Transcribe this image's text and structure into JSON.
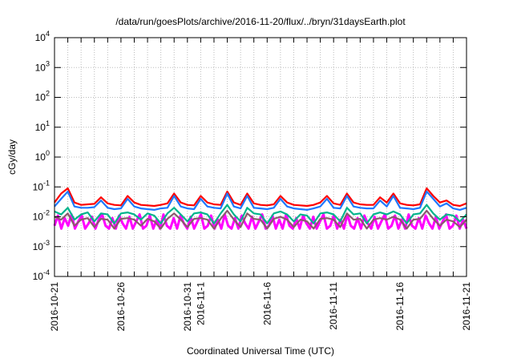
{
  "chart_data": {
    "type": "line",
    "title": "/data/run/goesPlots/archive/2016-11-20/flux/../bryn/31daysEarth.plot",
    "xlabel": "Coordinated Universal Time (UTC)",
    "ylabel": "cGy/day",
    "yscale": "log",
    "ylim": [
      0.0001,
      10000
    ],
    "xlim_days": [
      0,
      31
    ],
    "grid": true,
    "y_ticks": [
      {
        "base": "10",
        "exp": "4",
        "value": 10000
      },
      {
        "base": "10",
        "exp": "3",
        "value": 1000
      },
      {
        "base": "10",
        "exp": "2",
        "value": 100
      },
      {
        "base": "10",
        "exp": "1",
        "value": 10
      },
      {
        "base": "10",
        "exp": "0",
        "value": 1
      },
      {
        "base": "10",
        "exp": "-1",
        "value": 0.1
      },
      {
        "base": "10",
        "exp": "-2",
        "value": 0.01
      },
      {
        "base": "10",
        "exp": "-3",
        "value": 0.001
      },
      {
        "base": "10",
        "exp": "-4",
        "value": 0.0001
      }
    ],
    "x_ticks": [
      {
        "label": "2016-10-21",
        "day": 0
      },
      {
        "label": "2016-10-26",
        "day": 5
      },
      {
        "label": "2016-10-31",
        "day": 10
      },
      {
        "label": "2016-11-1",
        "day": 11
      },
      {
        "label": "2016-11-6",
        "day": 16
      },
      {
        "label": "2016-11-11",
        "day": 21
      },
      {
        "label": "2016-11-16",
        "day": 26
      },
      {
        "label": "2016-11-21",
        "day": 31
      }
    ],
    "series": [
      {
        "name": "magenta",
        "color": "#ff00ff",
        "values": [
          0.005,
          0.011,
          0.004,
          0.009,
          0.005,
          0.012,
          0.004,
          0.007,
          0.011,
          0.004,
          0.006,
          0.01,
          0.004,
          0.008,
          0.012,
          0.005,
          0.004,
          0.009,
          0.004,
          0.011,
          0.006,
          0.004,
          0.01,
          0.004,
          0.007,
          0.012,
          0.004,
          0.005,
          0.011,
          0.004,
          0.008,
          0.004,
          0.012,
          0.005,
          0.004,
          0.009,
          0.004,
          0.011,
          0.006,
          0.004,
          0.01,
          0.004,
          0.007,
          0.012,
          0.004,
          0.005,
          0.011,
          0.004,
          0.008,
          0.004,
          0.012,
          0.005,
          0.004,
          0.009,
          0.004,
          0.011,
          0.006,
          0.004,
          0.01,
          0.004,
          0.007,
          0.012,
          0.004,
          0.005,
          0.011,
          0.004,
          0.008,
          0.004,
          0.012,
          0.005,
          0.004,
          0.009,
          0.004,
          0.011,
          0.006,
          0.004,
          0.01,
          0.004,
          0.007,
          0.012,
          0.004,
          0.005,
          0.011,
          0.004,
          0.008,
          0.004,
          0.012,
          0.005,
          0.004,
          0.009,
          0.004,
          0.011,
          0.006,
          0.004,
          0.01,
          0.004,
          0.007,
          0.012,
          0.004,
          0.005,
          0.011,
          0.004,
          0.008,
          0.004,
          0.012,
          0.005,
          0.004,
          0.009,
          0.004,
          0.011,
          0.006,
          0.004,
          0.01,
          0.004,
          0.007,
          0.012,
          0.004,
          0.005,
          0.011,
          0.004,
          0.008,
          0.004
        ]
      },
      {
        "name": "brown",
        "color": "#8b5a6e",
        "values": [
          0.01,
          0.008,
          0.013,
          0.005,
          0.008,
          0.009,
          0.0045,
          0.0085,
          0.008,
          0.004,
          0.0085,
          0.009,
          0.008,
          0.005,
          0.0085,
          0.007,
          0.004,
          0.0085,
          0.013,
          0.008,
          0.0045,
          0.0085,
          0.009,
          0.008,
          0.004,
          0.0085,
          0.016,
          0.008,
          0.0045,
          0.013,
          0.0085,
          0.008,
          0.004,
          0.0085,
          0.01,
          0.008,
          0.0045,
          0.008,
          0.007,
          0.004,
          0.0085,
          0.009,
          0.008,
          0.0045,
          0.013,
          0.008,
          0.0085,
          0.004,
          0.008,
          0.009,
          0.008,
          0.01,
          0.008,
          0.004,
          0.008,
          0.0085,
          0.016,
          0.0085,
          0.005,
          0.008,
          0.007,
          0.0045,
          0.008
        ]
      },
      {
        "name": "teal",
        "color": "#00b48c",
        "values": [
          0.015,
          0.012,
          0.02,
          0.008,
          0.012,
          0.014,
          0.007,
          0.013,
          0.012,
          0.006,
          0.013,
          0.014,
          0.012,
          0.008,
          0.013,
          0.011,
          0.006,
          0.013,
          0.02,
          0.012,
          0.007,
          0.013,
          0.014,
          0.012,
          0.006,
          0.013,
          0.025,
          0.012,
          0.007,
          0.02,
          0.013,
          0.012,
          0.006,
          0.013,
          0.015,
          0.012,
          0.007,
          0.012,
          0.011,
          0.006,
          0.013,
          0.014,
          0.012,
          0.007,
          0.02,
          0.012,
          0.013,
          0.006,
          0.012,
          0.014,
          0.012,
          0.015,
          0.012,
          0.006,
          0.012,
          0.013,
          0.025,
          0.013,
          0.008,
          0.012,
          0.011,
          0.007,
          0.012
        ]
      },
      {
        "name": "red",
        "color": "#ff0000",
        "values": [
          0.03,
          0.06,
          0.09,
          0.03,
          0.025,
          0.026,
          0.027,
          0.045,
          0.028,
          0.025,
          0.024,
          0.05,
          0.03,
          0.025,
          0.024,
          0.023,
          0.025,
          0.028,
          0.06,
          0.03,
          0.025,
          0.024,
          0.05,
          0.03,
          0.026,
          0.025,
          0.07,
          0.03,
          0.025,
          0.06,
          0.028,
          0.025,
          0.024,
          0.026,
          0.05,
          0.03,
          0.025,
          0.024,
          0.023,
          0.025,
          0.03,
          0.05,
          0.028,
          0.025,
          0.06,
          0.03,
          0.026,
          0.025,
          0.025,
          0.045,
          0.03,
          0.06,
          0.028,
          0.025,
          0.024,
          0.026,
          0.09,
          0.05,
          0.03,
          0.035,
          0.025,
          0.023,
          0.028
        ]
      },
      {
        "name": "blue",
        "color": "#1e78ff",
        "values": [
          0.022,
          0.04,
          0.07,
          0.022,
          0.02,
          0.02,
          0.021,
          0.035,
          0.02,
          0.018,
          0.019,
          0.04,
          0.022,
          0.019,
          0.018,
          0.017,
          0.019,
          0.02,
          0.05,
          0.022,
          0.019,
          0.018,
          0.04,
          0.022,
          0.02,
          0.019,
          0.06,
          0.022,
          0.019,
          0.05,
          0.02,
          0.019,
          0.018,
          0.02,
          0.04,
          0.022,
          0.019,
          0.018,
          0.017,
          0.019,
          0.022,
          0.04,
          0.02,
          0.019,
          0.05,
          0.022,
          0.02,
          0.019,
          0.019,
          0.035,
          0.022,
          0.05,
          0.02,
          0.019,
          0.018,
          0.02,
          0.07,
          0.04,
          0.022,
          0.028,
          0.019,
          0.017,
          0.02
        ]
      }
    ]
  }
}
